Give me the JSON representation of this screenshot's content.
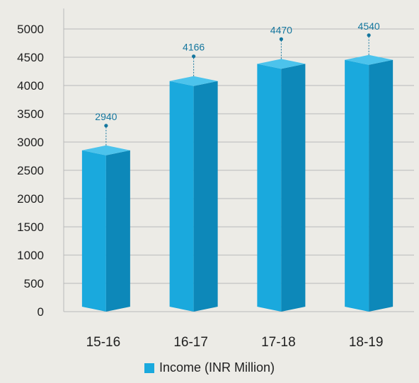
{
  "chart_data": {
    "type": "bar",
    "categories": [
      "15-16",
      "16-17",
      "17-18",
      "18-19"
    ],
    "series": [
      {
        "name": "Income (INR Million)",
        "values": [
          2940,
          4166,
          4470,
          4540
        ]
      }
    ],
    "data_labels": [
      "2940",
      "4166",
      "4470",
      "4540"
    ],
    "ylim": [
      0,
      5000
    ],
    "yticks": [
      "0",
      "500",
      "1000",
      "1500",
      "2000",
      "2500",
      "3000",
      "3500",
      "4000",
      "4500",
      "5000"
    ],
    "grid": true,
    "legend_position": "bottom",
    "bar_style": "3d",
    "colors": {
      "front": "#1aa9dd",
      "side": "#0d88b9",
      "top": "#4cc3ec",
      "label": "#14769e",
      "grid": "#b9b9b9"
    }
  }
}
